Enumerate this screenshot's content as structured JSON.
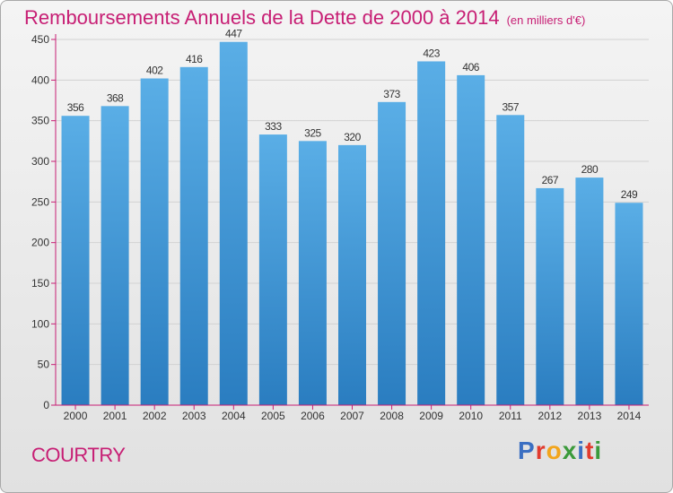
{
  "chart_data": {
    "type": "bar",
    "title": "Remboursements Annuels de la Dette de 2000 à 2014",
    "subtitle": "(en milliers d'€)",
    "categories": [
      "2000",
      "2001",
      "2002",
      "2003",
      "2004",
      "2005",
      "2006",
      "2007",
      "2008",
      "2009",
      "2010",
      "2011",
      "2012",
      "2013",
      "2014"
    ],
    "values": [
      356,
      368,
      402,
      416,
      447,
      333,
      325,
      320,
      373,
      423,
      406,
      357,
      267,
      280,
      249
    ],
    "ylim": [
      0,
      450
    ],
    "yticks": [
      0,
      50,
      100,
      150,
      200,
      250,
      300,
      350,
      400,
      450
    ],
    "grid": true,
    "xlabel": "",
    "ylabel": "",
    "bar_color_light": "#5aaee6",
    "bar_color_dark": "#2a7dc0",
    "axis_color": "#c71e74"
  },
  "footer": {
    "town": "COURTRY",
    "logo_text": "Proxiti"
  },
  "colors": {
    "title": "#c71e74",
    "logo": [
      "#3b6fc2",
      "#e23b2e",
      "#f2a51c",
      "#3b9a3b",
      "#3b6fc2",
      "#e23b2e",
      "#3b9a3b"
    ]
  }
}
